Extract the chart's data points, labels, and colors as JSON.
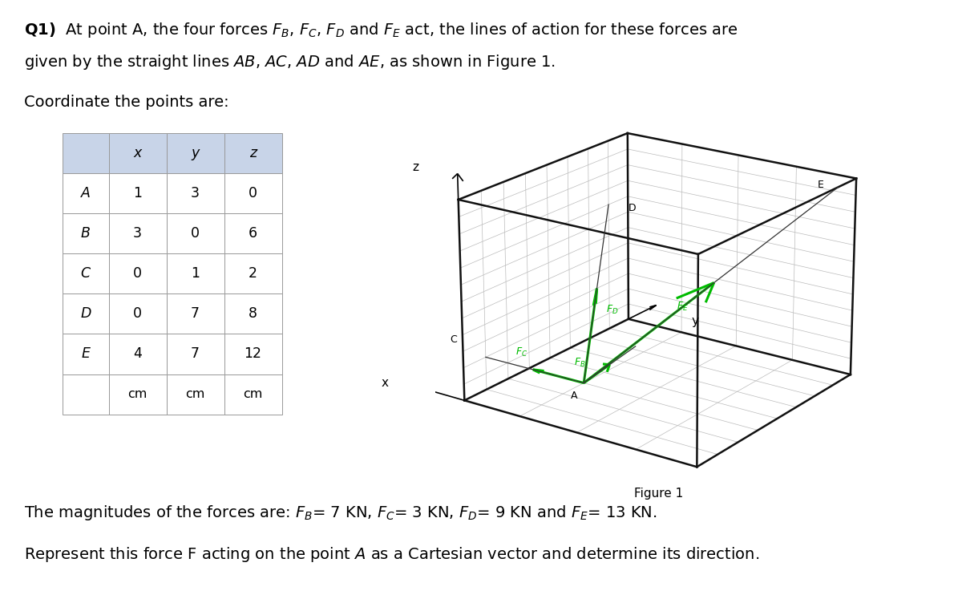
{
  "title_line1": "Q1)  At point A, the four forces $F_B$, $F_C$, $F_D$ and $F_E$ act, the lines of action for these forces are",
  "title_line2": "given by the straight lines $AB$, $AC$, $AD$ and $AE$, as shown in Figure 1.",
  "coord_text": "Coordinate the points are:",
  "table_headers": [
    "",
    "x",
    "y",
    "z"
  ],
  "table_rows": [
    [
      "A",
      "1",
      "3",
      "0"
    ],
    [
      "B",
      "3",
      "0",
      "6"
    ],
    [
      "C",
      "0",
      "1",
      "2"
    ],
    [
      "D",
      "0",
      "7",
      "8"
    ],
    [
      "E",
      "4",
      "7",
      "12"
    ]
  ],
  "table_units": [
    "",
    "cm",
    "cm",
    "cm"
  ],
  "magnitudes_text": "The magnitudes of the forces are: $F_B$= 7 KN, $F_C$= 3 KN, $F_D$= 9 KN and $F_E$= 13 KN.",
  "represent_text": "Represent this force F acting on the point $A$ as a Cartesian vector and determine its direction.",
  "figure_caption": "Figure 1",
  "bg_color": "#ffffff",
  "table_header_bg": "#c8d4e8",
  "table_border_color": "#999999",
  "arrow_color": "#00bb00",
  "box_color": "#111111",
  "grid_color": "#bbbbbb",
  "A": [
    1,
    3,
    0
  ],
  "B": [
    3,
    0,
    6
  ],
  "C": [
    0,
    1,
    2
  ],
  "D": [
    0,
    7,
    8
  ],
  "E": [
    4,
    7,
    12
  ],
  "bx": 4,
  "by": 8,
  "bz": 12,
  "elev": 20,
  "azim": -55
}
